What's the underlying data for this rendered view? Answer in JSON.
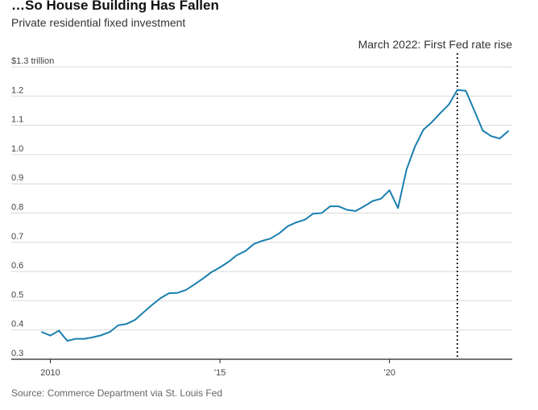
{
  "header": {
    "title": "…So House Building Has Fallen",
    "subtitle": "Private residential fixed investment"
  },
  "footer": {
    "source": "Source: Commerce Department via St. Louis Fed"
  },
  "colors": {
    "line": "#1a7fae",
    "grid": "#d9d9d9",
    "axis": "#222222",
    "annotation": "#222222"
  },
  "chart_data": {
    "type": "line",
    "title": "…So House Building Has Fallen",
    "subtitle": "Private residential fixed investment",
    "xlabel": "",
    "ylabel": "",
    "xlim": [
      2009.75,
      2023.5
    ],
    "ylim": [
      0.3,
      1.3
    ],
    "y_ticks": [
      1.3,
      1.2,
      1.1,
      1.0,
      0.9,
      0.8,
      0.7,
      0.6,
      0.5,
      0.4,
      0.3
    ],
    "y_tick_labels": [
      "$1.3 trillion",
      "1.2",
      "1.1",
      "1.0",
      "0.9",
      "0.8",
      "0.7",
      "0.6",
      "0.5",
      "0.4",
      "0.3"
    ],
    "x_ticks": [
      2010,
      2015,
      2020
    ],
    "x_tick_labels": [
      "2010",
      "’15",
      "’20"
    ],
    "grid": true,
    "annotation": {
      "x": 2022.0,
      "text": "March 2022: First Fed rate rise"
    },
    "series": [
      {
        "name": "",
        "x": [
          2009.75,
          2010.0,
          2010.25,
          2010.5,
          2010.75,
          2011.0,
          2011.25,
          2011.5,
          2011.75,
          2012.0,
          2012.25,
          2012.5,
          2012.75,
          2013.0,
          2013.25,
          2013.5,
          2013.75,
          2014.0,
          2014.25,
          2014.5,
          2014.75,
          2015.0,
          2015.25,
          2015.5,
          2015.75,
          2016.0,
          2016.25,
          2016.5,
          2016.75,
          2017.0,
          2017.25,
          2017.5,
          2017.75,
          2018.0,
          2018.25,
          2018.5,
          2018.75,
          2019.0,
          2019.25,
          2019.5,
          2019.75,
          2020.0,
          2020.25,
          2020.5,
          2020.75,
          2021.0,
          2021.25,
          2021.5,
          2021.75,
          2022.0,
          2022.25,
          2022.5,
          2022.75,
          2023.0,
          2023.25,
          2023.5
        ],
        "values": [
          0.393,
          0.381,
          0.398,
          0.363,
          0.37,
          0.37,
          0.375,
          0.382,
          0.393,
          0.416,
          0.421,
          0.435,
          0.461,
          0.486,
          0.509,
          0.526,
          0.527,
          0.537,
          0.556,
          0.576,
          0.598,
          0.614,
          0.633,
          0.656,
          0.67,
          0.694,
          0.705,
          0.713,
          0.731,
          0.755,
          0.768,
          0.777,
          0.798,
          0.8,
          0.823,
          0.823,
          0.811,
          0.807,
          0.823,
          0.841,
          0.849,
          0.878,
          0.817,
          0.948,
          1.027,
          1.085,
          1.111,
          1.142,
          1.171,
          1.221,
          1.218,
          1.151,
          1.082,
          1.063,
          1.055,
          1.08
        ]
      }
    ]
  }
}
